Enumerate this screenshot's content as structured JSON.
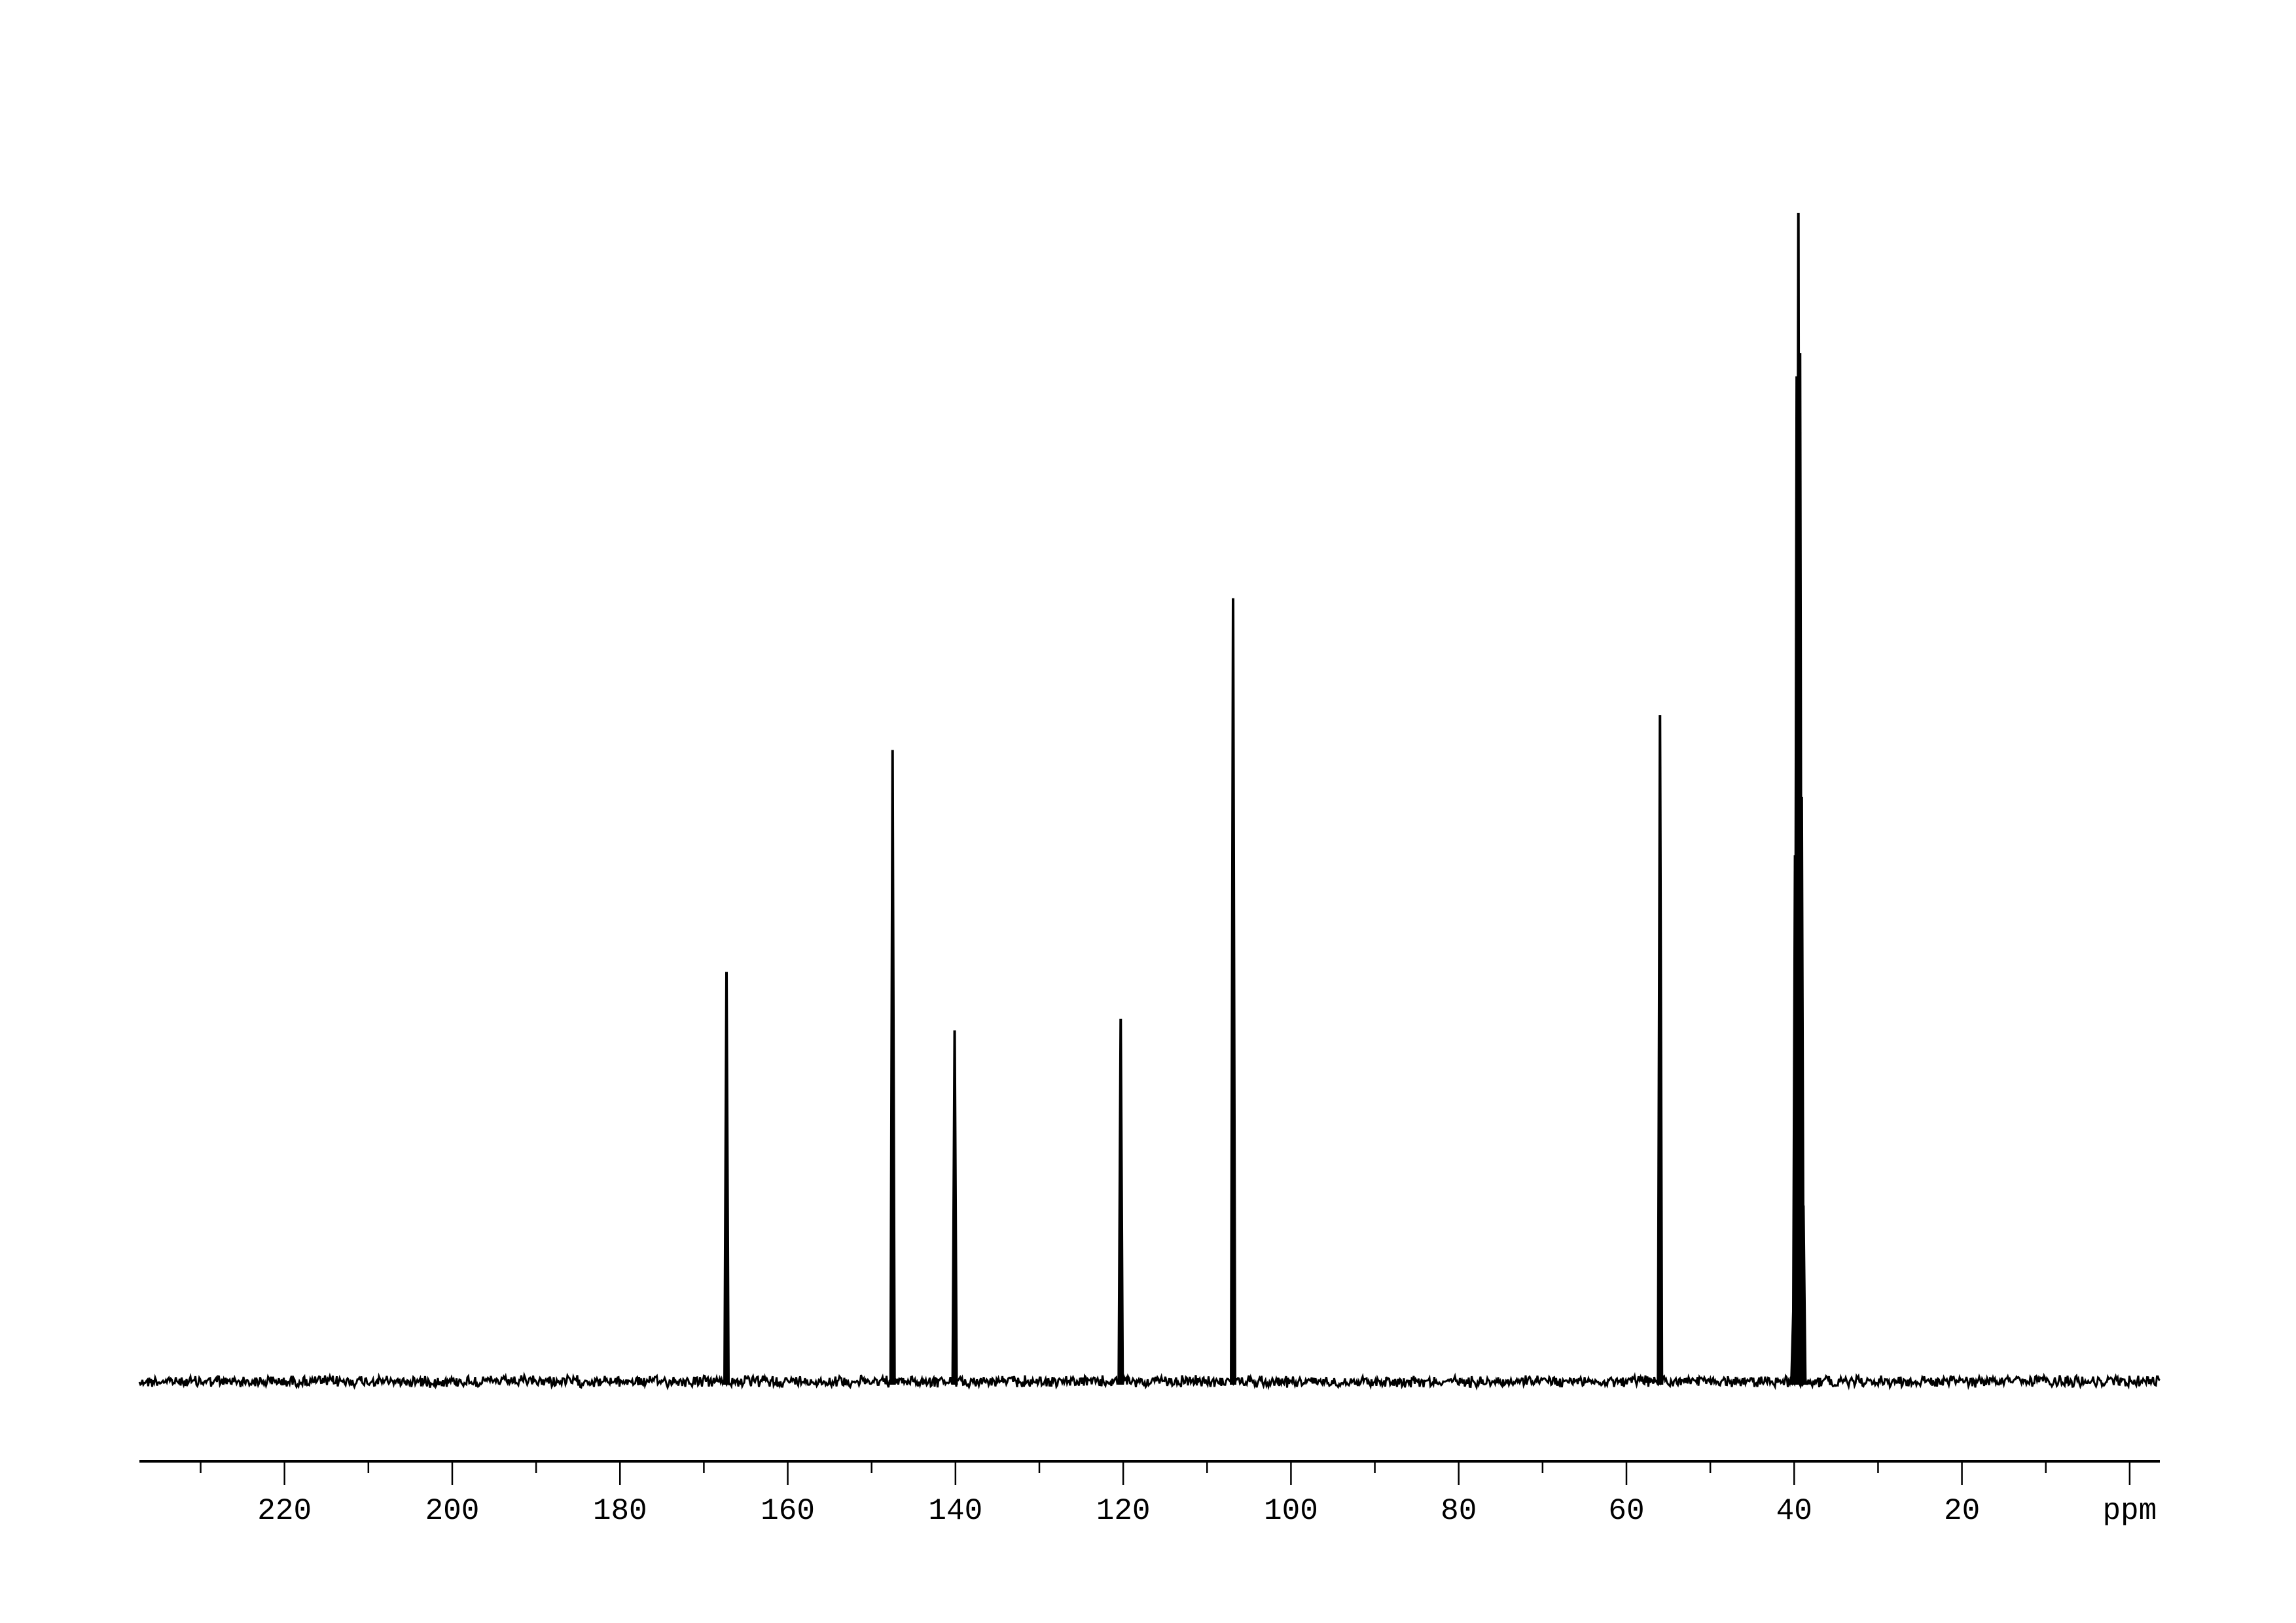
{
  "chart_data": {
    "type": "line",
    "title": "",
    "xlabel": "ppm",
    "ylabel": "",
    "x_reversed": true,
    "xlim": [
      237.3,
      -3.6
    ],
    "ylim": [
      -5,
      105
    ],
    "grid": false,
    "major_ticks": [
      220,
      200,
      180,
      160,
      140,
      120,
      100,
      80,
      60,
      40,
      20,
      0
    ],
    "tick_labels": [
      "220",
      "200",
      "180",
      "160",
      "140",
      "120",
      "100",
      "80",
      "60",
      "40",
      "20",
      "ppm"
    ],
    "minor_ticks": [
      230,
      210,
      190,
      170,
      150,
      130,
      110,
      90,
      70,
      50,
      30,
      10
    ],
    "line_color": "#000000",
    "peaks": [
      {
        "ppm": 167.3,
        "intensity": 35
      },
      {
        "ppm": 147.5,
        "intensity": 54
      },
      {
        "ppm": 140.1,
        "intensity": 30
      },
      {
        "ppm": 120.3,
        "intensity": 31
      },
      {
        "ppm": 106.9,
        "intensity": 67
      },
      {
        "ppm": 56.0,
        "intensity": 57
      },
      {
        "ppm": 40.1,
        "intensity": 6
      },
      {
        "ppm": 39.9,
        "intensity": 45
      },
      {
        "ppm": 39.7,
        "intensity": 86
      },
      {
        "ppm": 39.5,
        "intensity": 100
      },
      {
        "ppm": 39.3,
        "intensity": 88
      },
      {
        "ppm": 39.1,
        "intensity": 50
      },
      {
        "ppm": 38.9,
        "intensity": 15
      }
    ]
  }
}
